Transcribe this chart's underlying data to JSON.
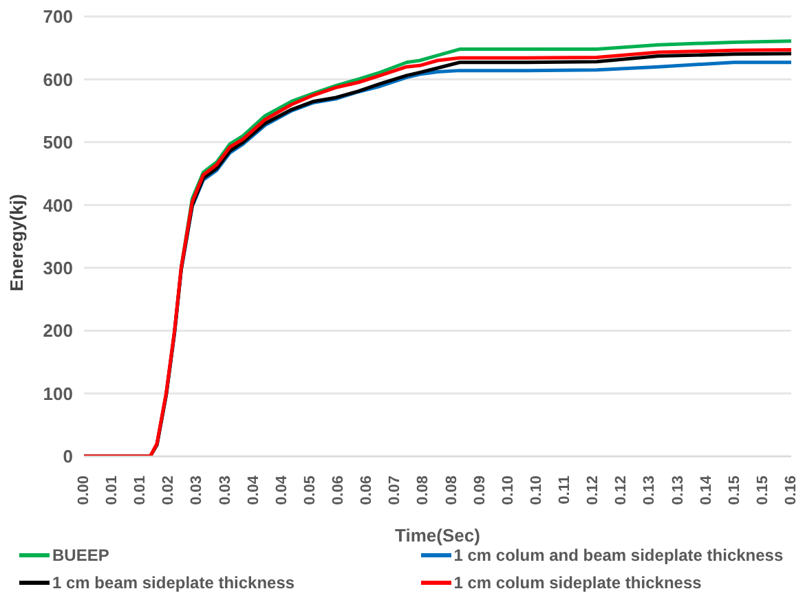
{
  "chart_data": {
    "type": "line",
    "xlabel": "Time(Sec)",
    "ylabel": "Eneregy(kj)",
    "x": [
      0,
      0.015,
      0.0165,
      0.0186,
      0.0205,
      0.022,
      0.0245,
      0.027,
      0.03,
      0.033,
      0.036,
      0.041,
      0.047,
      0.052,
      0.057,
      0.062,
      0.067,
      0.073,
      0.076,
      0.08,
      0.085,
      0.1,
      0.116,
      0.13,
      0.147,
      0.16
    ],
    "series": [
      {
        "name": "BUEEP",
        "color": "#00b050",
        "values": [
          null,
          null,
          null,
          null,
          null,
          300,
          410,
          452,
          468,
          497,
          510,
          542,
          565,
          578,
          590,
          600,
          611,
          627,
          630,
          638,
          648,
          648,
          648,
          655,
          659,
          661
        ]
      },
      {
        "name": "1 cm colum and beam sideplate thickness",
        "color": "#0070c0",
        "values": [
          null,
          null,
          18,
          97,
          197,
          297,
          398,
          440,
          455,
          483,
          497,
          527,
          550,
          563,
          569,
          580,
          589,
          603,
          608,
          612,
          614,
          614,
          615,
          620,
          627,
          627
        ]
      },
      {
        "name": "1 cm beam sideplate thickness",
        "color": "#000000",
        "values": [
          0,
          0,
          18,
          98,
          198,
          298,
          400,
          443,
          458,
          486,
          500,
          530,
          552,
          565,
          571,
          581,
          593,
          606,
          611,
          618,
          627,
          627,
          628,
          637,
          640,
          641
        ]
      },
      {
        "name": "1 cm colum sideplate thickness",
        "color": "#ff0000",
        "values": [
          0,
          0,
          20,
          100,
          200,
          300,
          405,
          448,
          464,
          492,
          505,
          536,
          560,
          575,
          587,
          595,
          606,
          620,
          622,
          630,
          634,
          634,
          635,
          643,
          646,
          647
        ]
      }
    ],
    "xlim": [
      0,
      0.16
    ],
    "xticks": [
      {
        "value": 0,
        "label": "0.00"
      },
      {
        "value": 0.0064,
        "label": "0.01"
      },
      {
        "value": 0.0128,
        "label": "0.01"
      },
      {
        "value": 0.0192,
        "label": "0.02"
      },
      {
        "value": 0.0256,
        "label": "0.03"
      },
      {
        "value": 0.032,
        "label": "0.03"
      },
      {
        "value": 0.0384,
        "label": "0.04"
      },
      {
        "value": 0.0448,
        "label": "0.04"
      },
      {
        "value": 0.0512,
        "label": "0.05"
      },
      {
        "value": 0.0576,
        "label": "0.06"
      },
      {
        "value": 0.064,
        "label": "0.06"
      },
      {
        "value": 0.0704,
        "label": "0.07"
      },
      {
        "value": 0.0768,
        "label": "0.08"
      },
      {
        "value": 0.0832,
        "label": "0.08"
      },
      {
        "value": 0.0896,
        "label": "0.09"
      },
      {
        "value": 0.096,
        "label": "0.10"
      },
      {
        "value": 0.1024,
        "label": "0.10"
      },
      {
        "value": 0.1088,
        "label": "0.11"
      },
      {
        "value": 0.1152,
        "label": "0.12"
      },
      {
        "value": 0.1216,
        "label": "0.12"
      },
      {
        "value": 0.128,
        "label": "0.13"
      },
      {
        "value": 0.1344,
        "label": "0.13"
      },
      {
        "value": 0.1408,
        "label": "0.14"
      },
      {
        "value": 0.1472,
        "label": "0.15"
      },
      {
        "value": 0.1536,
        "label": "0.15"
      },
      {
        "value": 0.16,
        "label": "0.16"
      }
    ],
    "ylim": [
      0,
      700
    ],
    "yticks": [
      0,
      100,
      200,
      300,
      400,
      500,
      600,
      700
    ],
    "grid": "y",
    "legend": "bottom",
    "marker": "none",
    "line_style": "solid"
  }
}
